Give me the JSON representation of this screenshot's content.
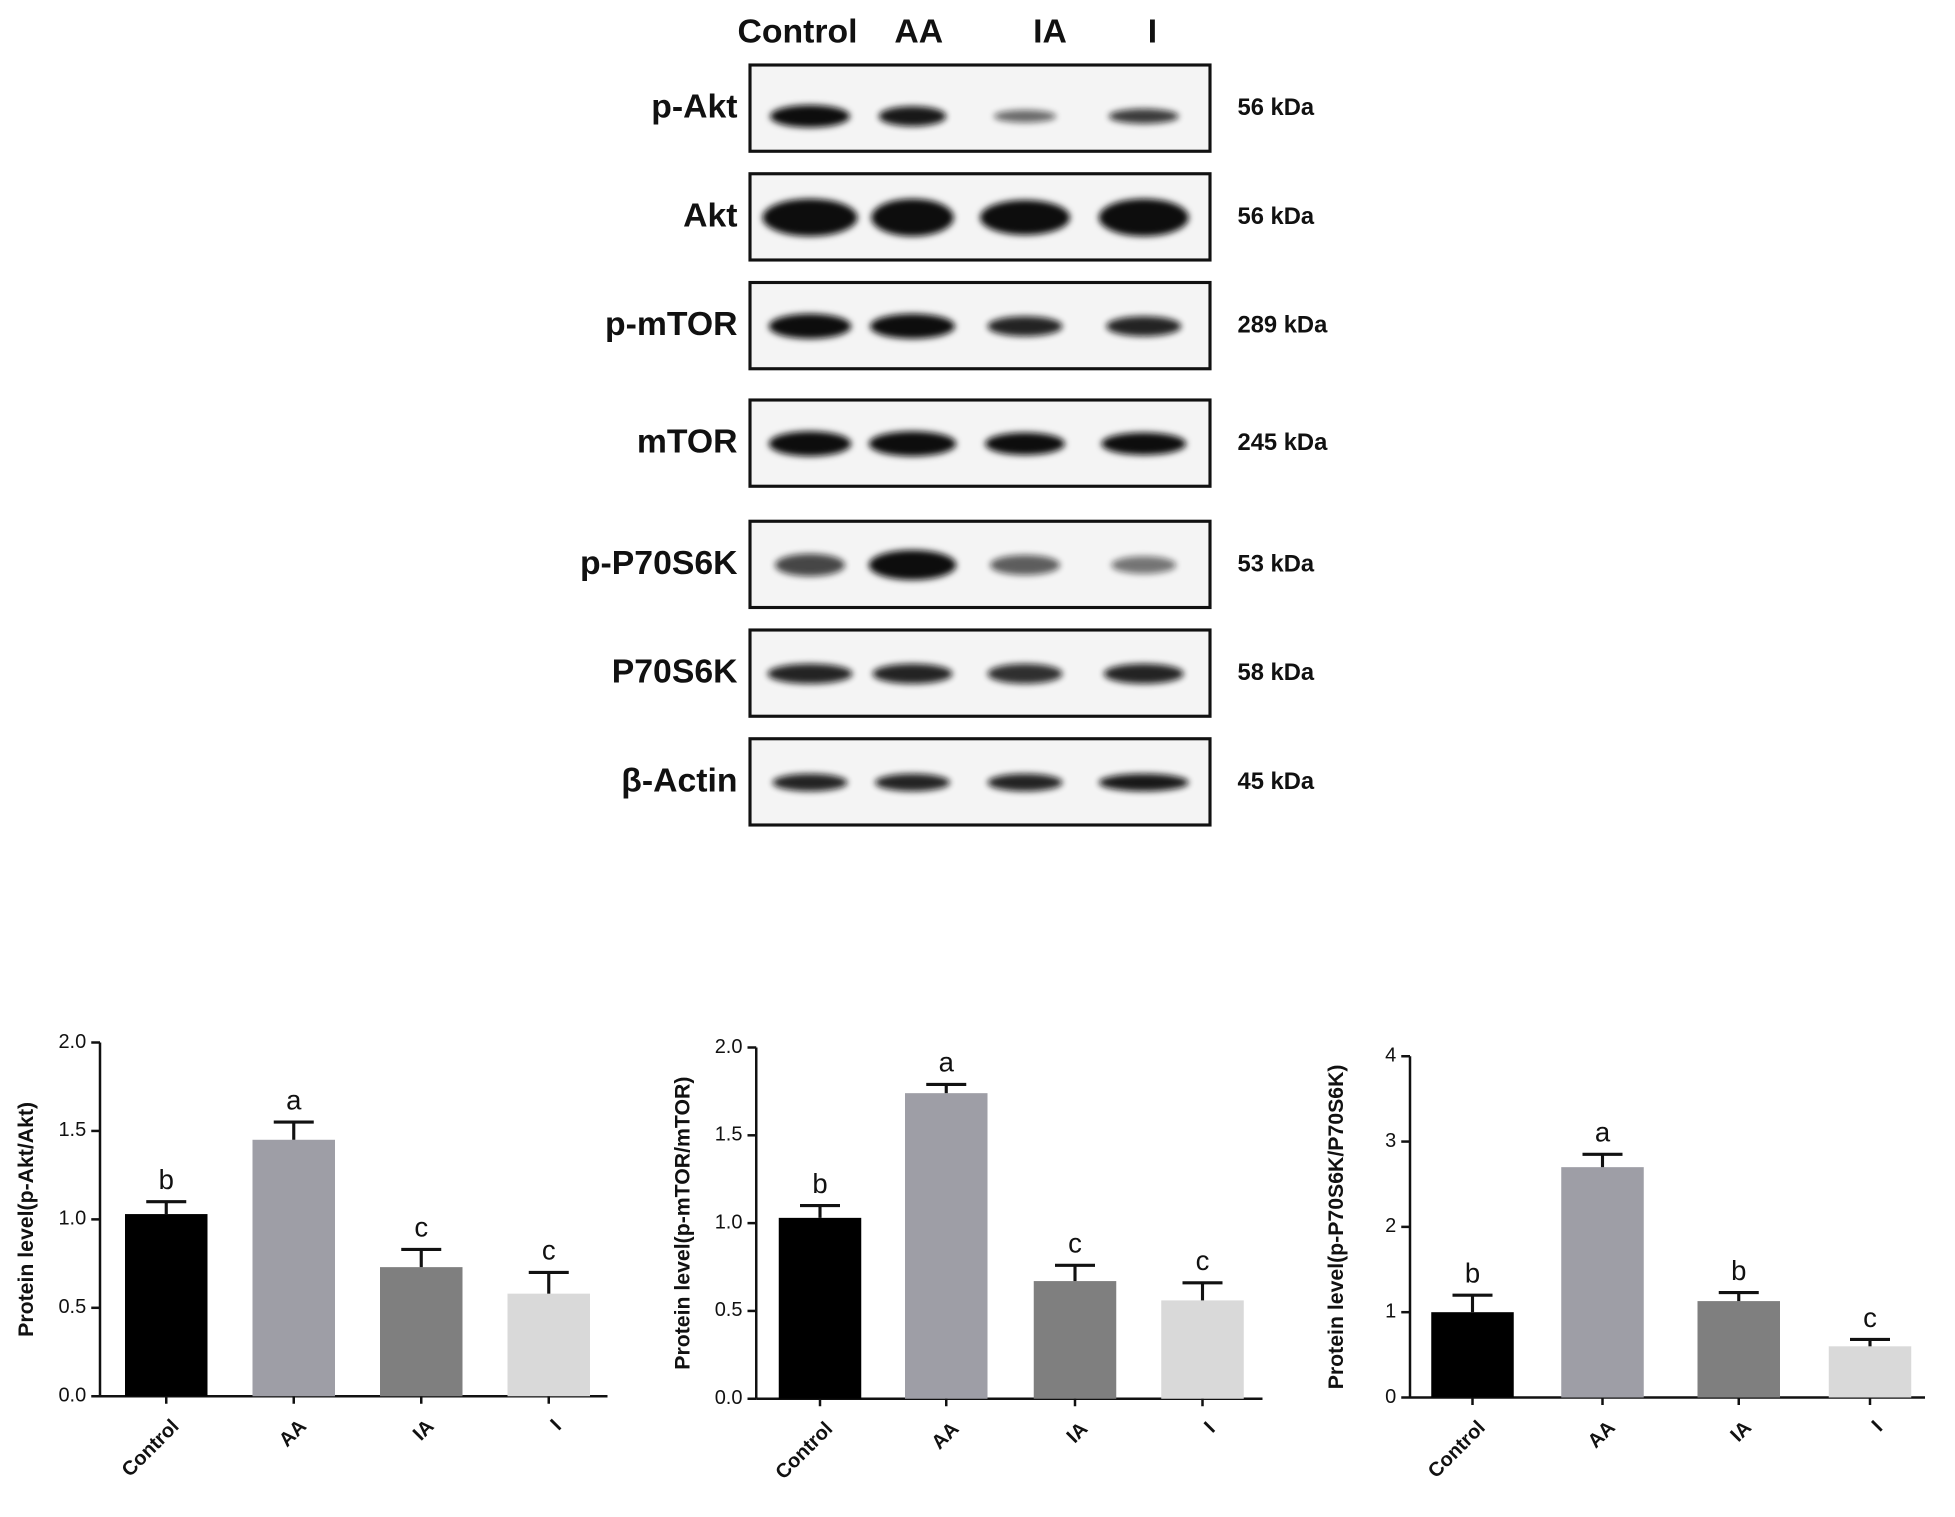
{
  "blot": {
    "lanes": [
      "Control",
      "AA",
      "IA",
      "I"
    ],
    "rows": [
      {
        "protein": "p-Akt",
        "size": "56 kDa"
      },
      {
        "protein": "Akt",
        "size": "56 kDa"
      },
      {
        "protein": "p-mTOR",
        "size": "289 kDa"
      },
      {
        "protein": "mTOR",
        "size": "245 kDa"
      },
      {
        "protein": "p-P70S6K",
        "size": "53 kDa"
      },
      {
        "protein": "P70S6K",
        "size": "58 kDa"
      },
      {
        "protein": "β-Actin",
        "size": "45 kDa"
      }
    ]
  },
  "chart_data": [
    {
      "type": "bar",
      "ylabel": "Protein level(p-Akt/Akt)",
      "categories": [
        "Control",
        "AA",
        "IA",
        "I"
      ],
      "values": [
        1.03,
        1.45,
        0.73,
        0.58
      ],
      "errors": [
        0.07,
        0.1,
        0.1,
        0.12
      ],
      "annotations": [
        "b",
        "a",
        "c",
        "c"
      ],
      "colors": [
        "#000000",
        "#9e9ea6",
        "#7f7f7f",
        "#d9d9d9"
      ],
      "ylim": [
        0,
        2
      ],
      "yticks": [
        {
          "value": 0,
          "label": "0.0"
        },
        0.5,
        {
          "value": 1,
          "label": "1.0"
        },
        1.5,
        {
          "value": 2,
          "label": "2.0"
        }
      ]
    },
    {
      "type": "bar",
      "ylabel": "Protein level(p-mTOR/mTOR)",
      "categories": [
        "Control",
        "AA",
        "IA",
        "I"
      ],
      "values": [
        1.03,
        1.74,
        0.67,
        0.56
      ],
      "errors": [
        0.07,
        0.05,
        0.09,
        0.1
      ],
      "annotations": [
        "b",
        "a",
        "c",
        "c"
      ],
      "colors": [
        "#000000",
        "#9e9ea6",
        "#7f7f7f",
        "#d9d9d9"
      ],
      "ylim": [
        0,
        2
      ],
      "yticks": [
        {
          "value": 0,
          "label": "0.0"
        },
        0.5,
        {
          "value": 1,
          "label": "1.0"
        },
        1.5,
        {
          "value": 2,
          "label": "2.0"
        }
      ]
    },
    {
      "type": "bar",
      "ylabel": "Protein level(p-P70S6K/P70S6K)",
      "categories": [
        "Control",
        "AA",
        "IA",
        "I"
      ],
      "values": [
        1.0,
        2.7,
        1.13,
        0.6
      ],
      "errors": [
        0.2,
        0.15,
        0.1,
        0.08
      ],
      "annotations": [
        "b",
        "a",
        "b",
        "c"
      ],
      "colors": [
        "#000000",
        "#9e9ea6",
        "#7f7f7f",
        "#d9d9d9"
      ],
      "ylim": [
        0,
        4
      ],
      "yticks": [
        0,
        1,
        2,
        3,
        4
      ]
    }
  ]
}
